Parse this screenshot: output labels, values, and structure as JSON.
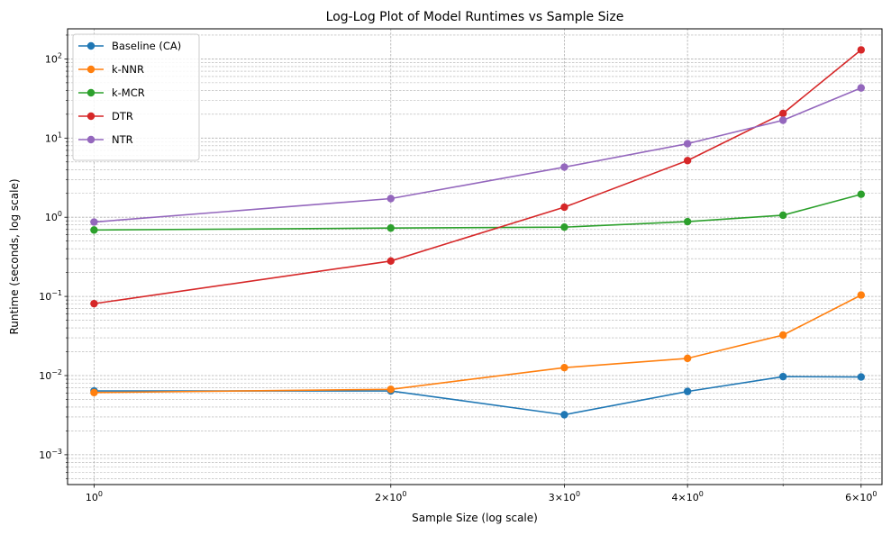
{
  "chart_data": {
    "type": "line",
    "title": "Log-Log Plot of Model Runtimes vs Sample Size",
    "xlabel": "Sample Size (log scale)",
    "ylabel": "Runtime (seconds, log scale)",
    "x_scale": "log",
    "y_scale": "log",
    "xlim": [
      0.94,
      6.3
    ],
    "ylim": [
      0.00042,
      240
    ],
    "grid": true,
    "legend_position": "top-left",
    "x": [
      1,
      2,
      3,
      4,
      5,
      6
    ],
    "x_ticks": [
      {
        "value": 1,
        "base": "10",
        "exp": "0"
      },
      {
        "value": 2,
        "base": "2×10",
        "exp": "0"
      },
      {
        "value": 3,
        "base": "3×10",
        "exp": "0"
      },
      {
        "value": 4,
        "base": "4×10",
        "exp": "0"
      },
      {
        "value": 6,
        "base": "6×10",
        "exp": "0"
      }
    ],
    "y_ticks": [
      {
        "value": 0.001,
        "base": "10",
        "exp": "−3"
      },
      {
        "value": 0.01,
        "base": "10",
        "exp": "−2"
      },
      {
        "value": 0.1,
        "base": "10",
        "exp": "−1"
      },
      {
        "value": 1,
        "base": "10",
        "exp": "0"
      },
      {
        "value": 10,
        "base": "10",
        "exp": "1"
      },
      {
        "value": 100,
        "base": "10",
        "exp": "2"
      }
    ],
    "series": [
      {
        "name": "Baseline (CA)",
        "color": "#1f77b4",
        "values": [
          0.0064,
          0.0064,
          0.0032,
          0.0063,
          0.0097,
          0.0096
        ]
      },
      {
        "name": "k-NNR",
        "color": "#ff7f0e",
        "values": [
          0.0061,
          0.0067,
          0.0126,
          0.0165,
          0.0325,
          0.104
        ]
      },
      {
        "name": "k-MCR",
        "color": "#2ca02c",
        "values": [
          0.69,
          0.73,
          0.75,
          0.88,
          1.06,
          1.95
        ]
      },
      {
        "name": "DTR",
        "color": "#d62728",
        "values": [
          0.081,
          0.28,
          1.34,
          5.2,
          20.5,
          130
        ]
      },
      {
        "name": "NTR",
        "color": "#9467bd",
        "values": [
          0.87,
          1.72,
          4.3,
          8.5,
          16.8,
          43
        ]
      }
    ]
  }
}
